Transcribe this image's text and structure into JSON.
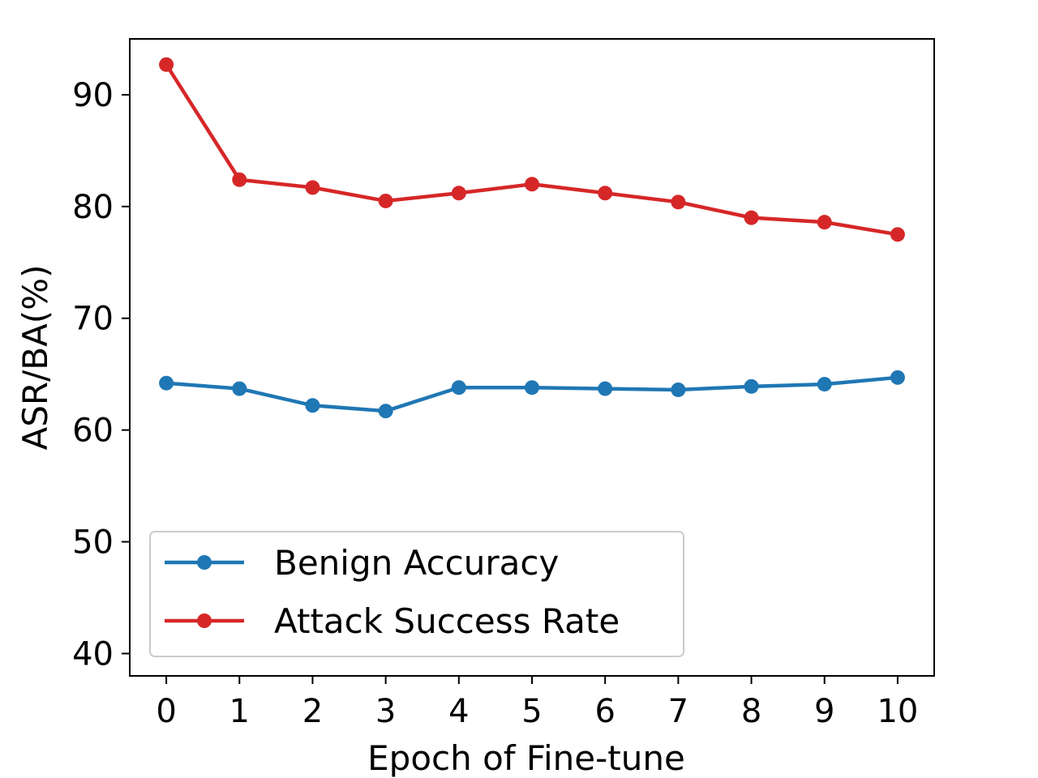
{
  "chart_data": {
    "type": "line",
    "title": "",
    "xlabel": "Epoch of Fine-tune",
    "ylabel": "ASR/BA(%)",
    "x": [
      0,
      1,
      2,
      3,
      4,
      5,
      6,
      7,
      8,
      9,
      10
    ],
    "x_ticks": [
      "0",
      "1",
      "2",
      "3",
      "4",
      "5",
      "6",
      "7",
      "8",
      "9",
      "10"
    ],
    "y_ticks": [
      "40",
      "50",
      "60",
      "70",
      "80",
      "90"
    ],
    "y_tick_values": [
      40,
      50,
      60,
      70,
      80,
      90
    ],
    "xlim": [
      -0.5,
      10.5
    ],
    "ylim": [
      38,
      95
    ],
    "grid": false,
    "legend_position": "lower-left",
    "series": [
      {
        "name": "Benign Accuracy",
        "color": "#1f77b4",
        "marker": "circle",
        "values": [
          64.2,
          63.7,
          62.2,
          61.7,
          63.8,
          63.8,
          63.7,
          63.6,
          63.9,
          64.1,
          64.7
        ]
      },
      {
        "name": "Attack Success Rate",
        "color": "#d62728",
        "marker": "circle",
        "values": [
          92.7,
          82.4,
          81.7,
          80.5,
          81.2,
          82.0,
          81.2,
          80.4,
          79.0,
          78.6,
          77.5
        ]
      }
    ]
  }
}
